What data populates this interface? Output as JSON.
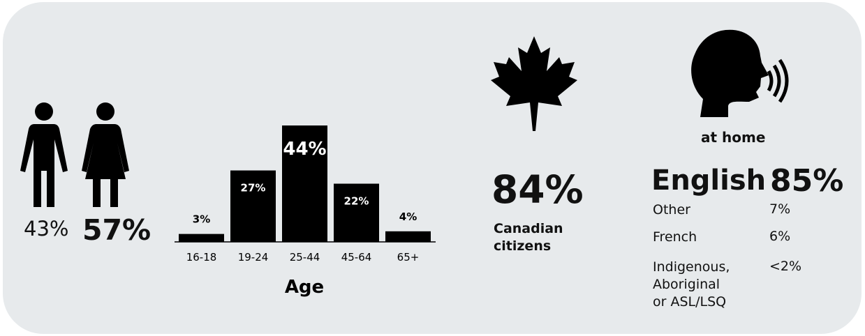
{
  "gender": {
    "male_pct": "43%",
    "female_pct": "57%",
    "male_icon": "man-icon",
    "female_icon": "woman-icon"
  },
  "chart_data": {
    "type": "bar",
    "categories": [
      "16-18",
      "19-24",
      "25-44",
      "45-64",
      "65+"
    ],
    "values": [
      3,
      27,
      44,
      22,
      4
    ],
    "data_labels": [
      "3%",
      "27%",
      "44%",
      "22%",
      "4%"
    ],
    "xlabel": "Age",
    "ylabel": "",
    "ylim": [
      0,
      44
    ],
    "grid": false,
    "bar_color": "#000000"
  },
  "citizenship": {
    "icon": "maple-leaf-icon",
    "value": "84%",
    "label_line1": "Canadian",
    "label_line2": "citizens"
  },
  "language": {
    "icon": "speaking-head-icon",
    "context": "at home",
    "primary": {
      "name": "English",
      "value": "85%"
    },
    "others": [
      {
        "name_lines": [
          "Other"
        ],
        "value": "7%"
      },
      {
        "name_lines": [
          "French"
        ],
        "value": "6%"
      },
      {
        "name_lines": [
          "Indigenous,",
          "Aboriginal",
          "or ASL/LSQ"
        ],
        "value": "<2%"
      }
    ]
  },
  "colors": {
    "panel": "#e7eaec",
    "ink": "#000000"
  }
}
